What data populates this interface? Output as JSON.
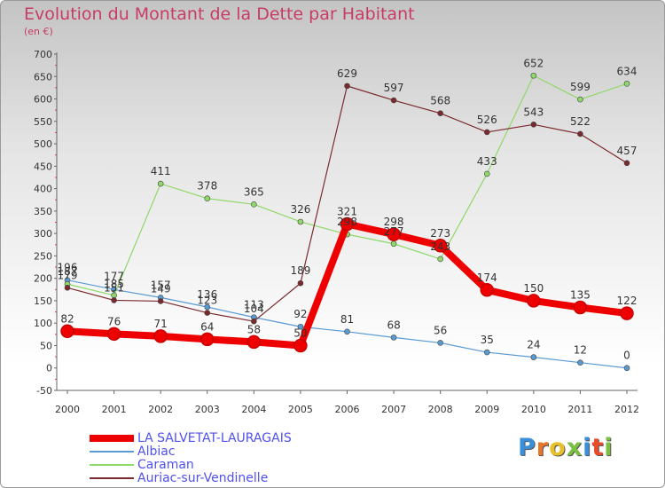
{
  "title": "Evolution du Montant de la Dette par Habitant",
  "subtitle": "(en €)",
  "logo": {
    "text": "Proxiti",
    "colors": [
      "#3a8fd8",
      "#e8762a",
      "#e8c02a",
      "#7ac142",
      "#3a8fd8",
      "#e84a2a",
      "#7ac142"
    ]
  },
  "chart_data": {
    "type": "line",
    "x": [
      "2000",
      "2001",
      "2002",
      "2003",
      "2004",
      "2005",
      "2006",
      "2007",
      "2008",
      "2009",
      "2010",
      "2011",
      "2012"
    ],
    "yticks": [
      "-50",
      "0",
      "50",
      "100",
      "150",
      "200",
      "250",
      "300",
      "350",
      "400",
      "450",
      "500",
      "550",
      "600",
      "650",
      "700"
    ],
    "ylim": [
      -50,
      700
    ],
    "grid": false,
    "legend_position": "bottom-left",
    "series": [
      {
        "name": "Albiac",
        "color": "#5a9ad2",
        "line_width": 1.2,
        "values": [
          196,
          175,
          157,
          136,
          113,
          92,
          81,
          68,
          56,
          35,
          24,
          12,
          0
        ],
        "labels": [
          "196",
          "",
          "157",
          "136",
          "113",
          "92",
          "81",
          "68",
          "56",
          "35",
          "24",
          "12",
          "0"
        ]
      },
      {
        "name": "Caraman",
        "color": "#8fd86a",
        "line_width": 1.2,
        "values": [
          187,
          162,
          411,
          378,
          365,
          326,
          298,
          277,
          243,
          433,
          652,
          599,
          634
        ],
        "labels": [
          "187",
          "",
          "411",
          "378",
          "365",
          "326",
          "298",
          "277",
          "243",
          "433",
          "652",
          "599",
          "634"
        ]
      },
      {
        "name": "Auriac-sur-Vendinelle",
        "color": "#7a2a2e",
        "line_width": 1.2,
        "values": [
          179,
          151,
          149,
          123,
          104,
          189,
          629,
          597,
          568,
          526,
          543,
          522,
          457
        ],
        "labels": [
          "179",
          "151",
          "149",
          "123",
          "104",
          "189",
          "629",
          "597",
          "568",
          "526",
          "543",
          "522",
          "457"
        ]
      },
      {
        "name": "LA SALVETAT-LAURAGAIS",
        "color": "#ee0000",
        "line_width": 8,
        "values": [
          82,
          76,
          71,
          64,
          58,
          50,
          321,
          298,
          273,
          174,
          150,
          135,
          122
        ],
        "labels": [
          "82",
          "76",
          "71",
          "64",
          "58",
          "50",
          "321",
          "298",
          "273",
          "174",
          "150",
          "135",
          "122"
        ]
      }
    ],
    "extra_labels": [
      "177",
      "185"
    ],
    "legend_order": [
      "LA SALVETAT-LAURAGAIS",
      "Albiac",
      "Caraman",
      "Auriac-sur-Vendinelle"
    ]
  }
}
